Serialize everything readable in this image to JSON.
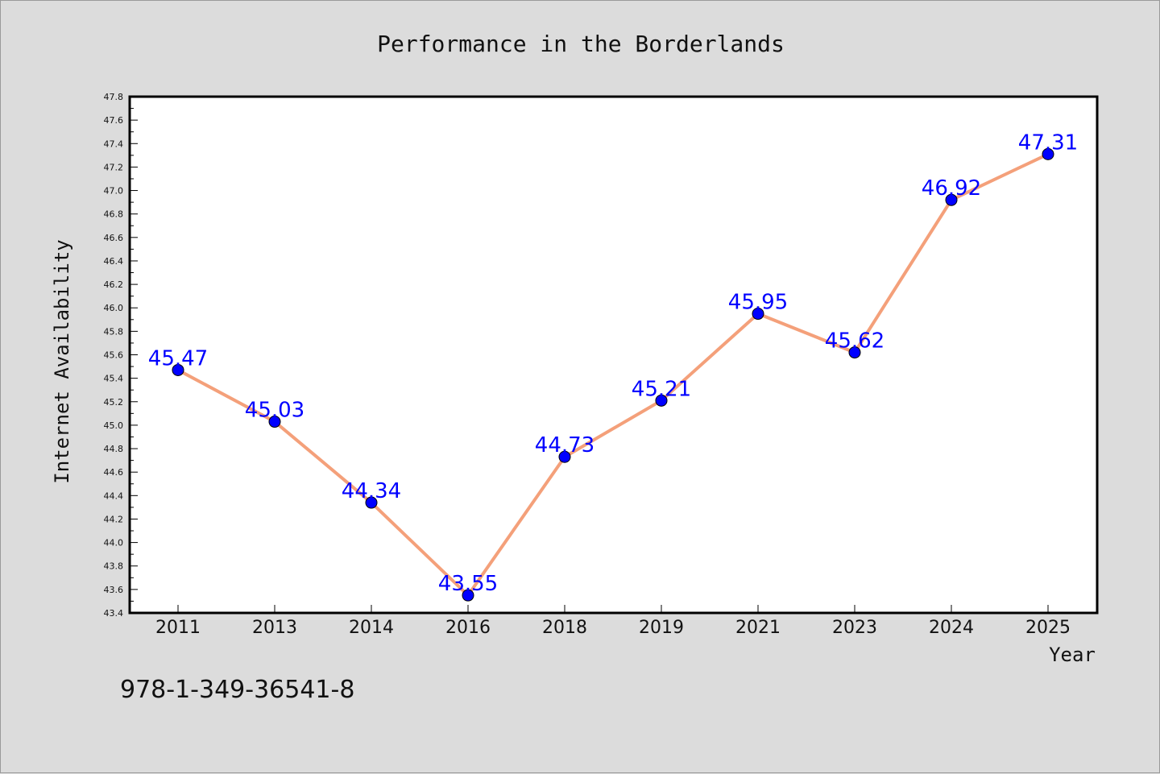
{
  "chart_data": {
    "type": "line",
    "title": "Performance in the Borderlands",
    "xlabel": "Year",
    "ylabel": "Internet Availability",
    "categories": [
      "2011",
      "2013",
      "2014",
      "2016",
      "2018",
      "2019",
      "2021",
      "2023",
      "2024",
      "2025"
    ],
    "series": [
      {
        "values": [
          45.47,
          45.03,
          44.34,
          43.55,
          44.73,
          45.21,
          45.95,
          45.62,
          46.92,
          47.31
        ],
        "data_labels": [
          "45.47",
          "45.03",
          "44.34",
          "43.55",
          "44.73",
          "45.21",
          "45.95",
          "45.62",
          "46.92",
          "47.31"
        ],
        "line_color": "#f4a07a",
        "marker_color": "#0000ff"
      }
    ],
    "ylim": [
      43.4,
      47.8
    ],
    "yticks": [
      "43.4",
      "43.6",
      "43.8",
      "44.0",
      "44.2",
      "44.4",
      "44.6",
      "44.8",
      "45.0",
      "45.2",
      "45.4",
      "45.6",
      "45.8",
      "46.0",
      "46.2",
      "46.4",
      "46.6",
      "46.8",
      "47.0",
      "47.2",
      "47.4",
      "47.6",
      "47.8"
    ],
    "grid": false,
    "legend": "none"
  },
  "footer": {
    "isbn": "978-1-349-36541-8"
  },
  "colors": {
    "background": "#dcdcdc",
    "plot_background": "#ffffff",
    "data_label": "#0000ff"
  }
}
